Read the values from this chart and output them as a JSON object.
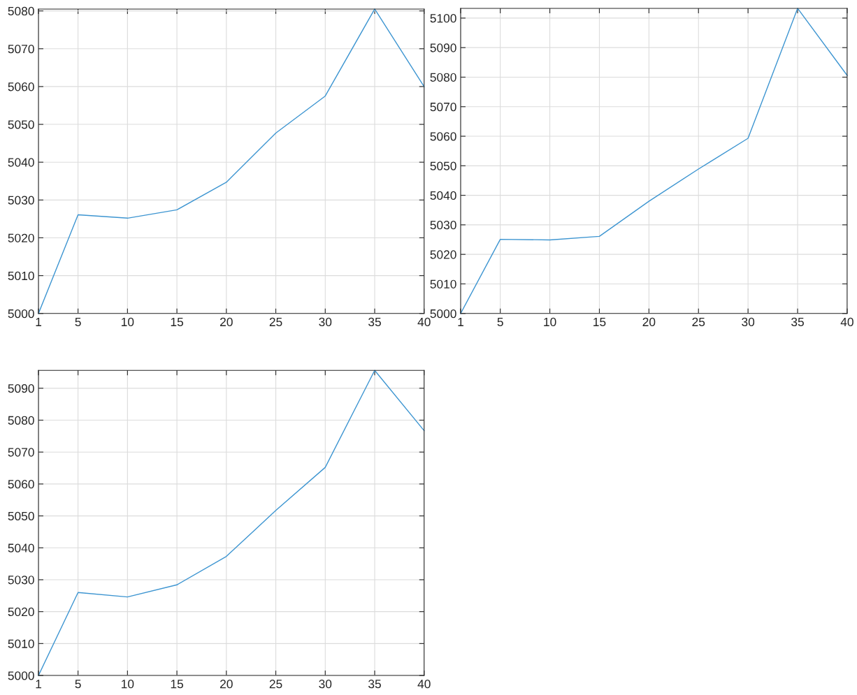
{
  "chart_data": [
    {
      "type": "line",
      "x": [
        1,
        5,
        10,
        15,
        20,
        25,
        30,
        35,
        40
      ],
      "series": [
        {
          "color": "#3d95d1",
          "values": [
            5000,
            5026.1,
            5025.2,
            5027.4,
            5034.7,
            5047.7,
            5057.5,
            5080.5,
            5060
          ]
        }
      ],
      "xlim": [
        1,
        40
      ],
      "ylim": [
        5000,
        5080.5
      ],
      "xticks": [
        1,
        5,
        10,
        15,
        20,
        25,
        30,
        35,
        40
      ],
      "yticks": [
        5000,
        5010,
        5020,
        5030,
        5040,
        5050,
        5060,
        5070,
        5080
      ],
      "grid": true,
      "line_style": "solid",
      "marker": "none"
    },
    {
      "type": "line",
      "x": [
        1,
        5,
        10,
        15,
        20,
        25,
        30,
        35,
        40
      ],
      "series": [
        {
          "color": "#3d95d1",
          "values": [
            5000,
            5025.1,
            5024.9,
            5026.1,
            5038,
            5048.9,
            5059.3,
            5103.3,
            5080.6
          ]
        }
      ],
      "xlim": [
        1,
        40
      ],
      "ylim": [
        5000,
        5103.3
      ],
      "xticks": [
        1,
        5,
        10,
        15,
        20,
        25,
        30,
        35,
        40
      ],
      "yticks": [
        5000,
        5010,
        5020,
        5030,
        5040,
        5050,
        5060,
        5070,
        5080,
        5090,
        5100
      ],
      "grid": true,
      "line_style": "solid",
      "marker": "none"
    },
    {
      "type": "line",
      "x": [
        1,
        5,
        10,
        15,
        20,
        25,
        30,
        35,
        40
      ],
      "series": [
        {
          "color": "#3d95d1",
          "values": [
            5000,
            5026,
            5024.6,
            5028.4,
            5037.3,
            5051.7,
            5065.2,
            5095.6,
            5076.7
          ]
        }
      ],
      "xlim": [
        1,
        40
      ],
      "ylim": [
        5000,
        5095.6
      ],
      "xticks": [
        1,
        5,
        10,
        15,
        20,
        25,
        30,
        35,
        40
      ],
      "yticks": [
        5000,
        5010,
        5020,
        5030,
        5040,
        5050,
        5060,
        5070,
        5080,
        5090
      ],
      "grid": true,
      "line_style": "solid",
      "marker": "none"
    }
  ]
}
